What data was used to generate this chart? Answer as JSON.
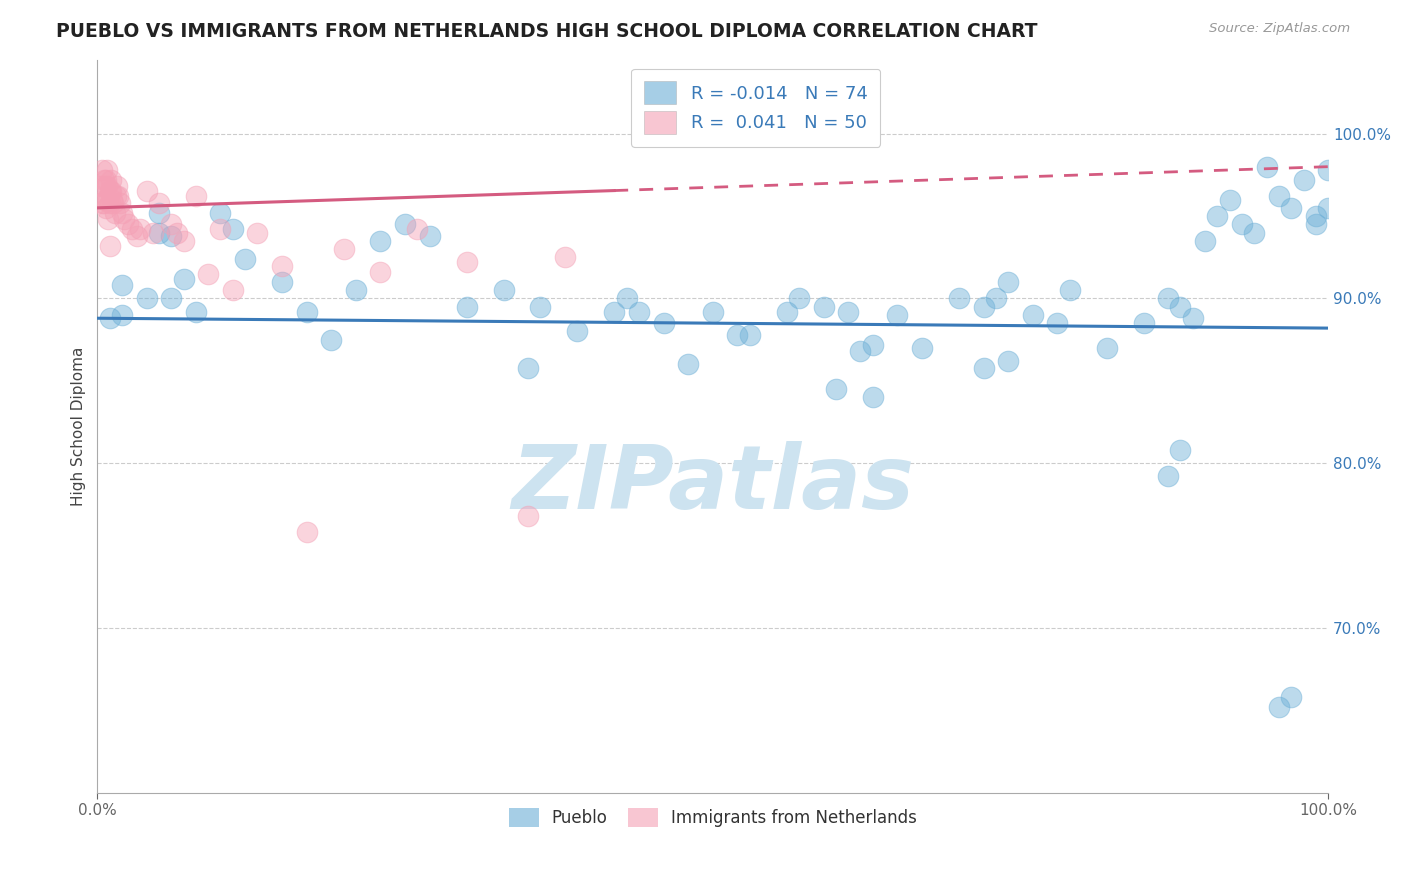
{
  "title": "PUEBLO VS IMMIGRANTS FROM NETHERLANDS HIGH SCHOOL DIPLOMA CORRELATION CHART",
  "source": "Source: ZipAtlas.com",
  "ylabel": "High School Diploma",
  "legend_label1": "Pueblo",
  "legend_label2": "Immigrants from Netherlands",
  "r1": "-0.014",
  "n1": "74",
  "r2": "0.041",
  "n2": "50",
  "blue_color": "#6baed6",
  "pink_color": "#f4a0b5",
  "trend_blue": "#3a7ab8",
  "trend_pink": "#d45b80",
  "watermark_color": "#cde3f0",
  "blue_points_x": [
    0.01,
    0.02,
    0.02,
    0.04,
    0.05,
    0.05,
    0.06,
    0.06,
    0.07,
    0.08,
    0.1,
    0.11,
    0.12,
    0.15,
    0.17,
    0.19,
    0.21,
    0.23,
    0.25,
    0.27,
    0.3,
    0.33,
    0.36,
    0.39,
    0.42,
    0.43,
    0.44,
    0.46,
    0.48,
    0.5,
    0.53,
    0.56,
    0.57,
    0.59,
    0.61,
    0.63,
    0.65,
    0.67,
    0.7,
    0.72,
    0.73,
    0.74,
    0.76,
    0.78,
    0.79,
    0.82,
    0.85,
    0.87,
    0.88,
    0.89,
    0.9,
    0.91,
    0.92,
    0.93,
    0.94,
    0.95,
    0.96,
    0.97,
    0.98,
    0.99,
    0.99,
    1.0,
    1.0,
    0.35,
    0.52,
    0.6,
    0.62,
    0.63,
    0.72,
    0.74,
    0.87,
    0.88,
    0.96,
    0.97
  ],
  "blue_points_y": [
    0.888,
    0.908,
    0.89,
    0.9,
    0.952,
    0.94,
    0.9,
    0.938,
    0.912,
    0.892,
    0.952,
    0.942,
    0.924,
    0.91,
    0.892,
    0.875,
    0.905,
    0.935,
    0.945,
    0.938,
    0.895,
    0.905,
    0.895,
    0.88,
    0.892,
    0.9,
    0.892,
    0.885,
    0.86,
    0.892,
    0.878,
    0.892,
    0.9,
    0.895,
    0.892,
    0.84,
    0.89,
    0.87,
    0.9,
    0.895,
    0.9,
    0.91,
    0.89,
    0.885,
    0.905,
    0.87,
    0.885,
    0.9,
    0.895,
    0.888,
    0.935,
    0.95,
    0.96,
    0.945,
    0.94,
    0.98,
    0.962,
    0.955,
    0.972,
    0.95,
    0.945,
    0.955,
    0.978,
    0.858,
    0.878,
    0.845,
    0.868,
    0.872,
    0.858,
    0.862,
    0.792,
    0.808,
    0.652,
    0.658
  ],
  "pink_points_x": [
    0.003,
    0.004,
    0.004,
    0.005,
    0.005,
    0.006,
    0.006,
    0.007,
    0.007,
    0.008,
    0.008,
    0.009,
    0.009,
    0.01,
    0.01,
    0.011,
    0.011,
    0.012,
    0.013,
    0.014,
    0.015,
    0.016,
    0.017,
    0.018,
    0.02,
    0.022,
    0.025,
    0.028,
    0.032,
    0.035,
    0.04,
    0.045,
    0.05,
    0.06,
    0.065,
    0.07,
    0.08,
    0.09,
    0.1,
    0.11,
    0.13,
    0.15,
    0.17,
    0.2,
    0.23,
    0.26,
    0.3,
    0.35,
    0.38,
    0.01
  ],
  "pink_points_y": [
    0.968,
    0.978,
    0.958,
    0.972,
    0.958,
    0.968,
    0.96,
    0.972,
    0.955,
    0.968,
    0.978,
    0.96,
    0.948,
    0.965,
    0.958,
    0.972,
    0.965,
    0.96,
    0.958,
    0.952,
    0.962,
    0.968,
    0.962,
    0.958,
    0.952,
    0.948,
    0.945,
    0.942,
    0.938,
    0.942,
    0.965,
    0.94,
    0.958,
    0.945,
    0.94,
    0.935,
    0.962,
    0.915,
    0.942,
    0.905,
    0.94,
    0.92,
    0.758,
    0.93,
    0.916,
    0.942,
    0.922,
    0.768,
    0.925,
    0.932
  ],
  "ylim_min": 0.6,
  "ylim_max": 1.045,
  "xlim_min": 0.0,
  "xlim_max": 1.0,
  "yticks": [
    0.7,
    0.8,
    0.9,
    1.0
  ],
  "xticks": [
    0.0,
    1.0
  ]
}
